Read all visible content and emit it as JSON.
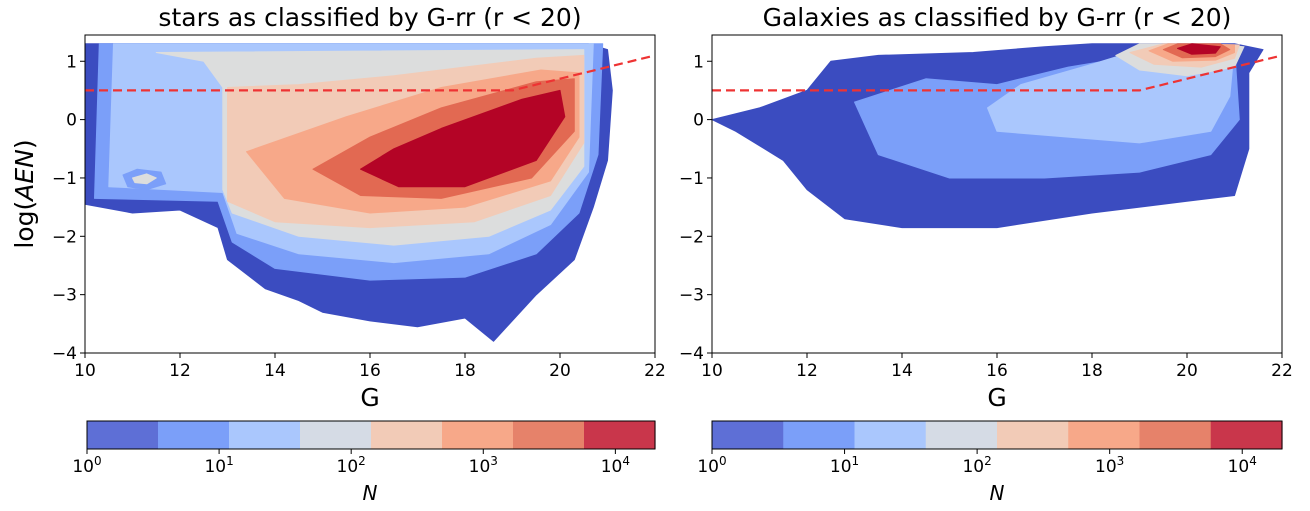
{
  "chart_data": [
    {
      "type": "heatmap",
      "title": "stars as classified by G-rr (r < 20)",
      "xlabel": "G",
      "ylabel": "log(AEN)",
      "xlim": [
        10,
        22
      ],
      "ylim": [
        -4,
        1.45
      ],
      "xticks": [
        "10",
        "12",
        "14",
        "16",
        "18",
        "20",
        "22"
      ],
      "yticks": [
        "−4",
        "−3",
        "−2",
        "−1",
        "0",
        "1"
      ],
      "boundary_line": {
        "x": [
          10,
          19,
          22
        ],
        "y": [
          0.5,
          0.5,
          1.1
        ],
        "color": "#ee3333",
        "style": "dashed"
      },
      "density_levels": [
        {
          "level": 1,
          "color": "#3b4cc0",
          "poly": [
            [
              10,
              -1.45
            ],
            [
              11,
              -1.6
            ],
            [
              12,
              -1.55
            ],
            [
              12.8,
              -1.85
            ],
            [
              13,
              -2.4
            ],
            [
              13.8,
              -2.9
            ],
            [
              14.5,
              -3.1
            ],
            [
              15,
              -3.3
            ],
            [
              16,
              -3.45
            ],
            [
              17,
              -3.55
            ],
            [
              18,
              -3.4
            ],
            [
              18.6,
              -3.8
            ],
            [
              19.5,
              -3.0
            ],
            [
              20.3,
              -2.4
            ],
            [
              20.7,
              -1.5
            ],
            [
              21.0,
              -0.7
            ],
            [
              21.1,
              0.5
            ],
            [
              21.0,
              1.2
            ],
            [
              20.6,
              1.3
            ],
            [
              10,
              1.3
            ]
          ]
        },
        {
          "level": 2,
          "color": "#7b9ff9",
          "poly": [
            [
              10.3,
              1.3
            ],
            [
              10.2,
              -1.35
            ],
            [
              12.8,
              -1.4
            ],
            [
              13.1,
              -2.1
            ],
            [
              14,
              -2.55
            ],
            [
              16,
              -2.75
            ],
            [
              18,
              -2.7
            ],
            [
              19.5,
              -2.3
            ],
            [
              20.4,
              -1.6
            ],
            [
              20.8,
              -0.6
            ],
            [
              20.9,
              1.3
            ]
          ]
        },
        {
          "level": 3,
          "color": "#aac7fd",
          "poly": [
            [
              10.6,
              1.3
            ],
            [
              10.5,
              -1.15
            ],
            [
              12.9,
              -1.25
            ],
            [
              13.2,
              -1.95
            ],
            [
              14.5,
              -2.3
            ],
            [
              16.5,
              -2.45
            ],
            [
              18.5,
              -2.3
            ],
            [
              19.8,
              -1.8
            ],
            [
              20.6,
              -0.9
            ],
            [
              20.7,
              1.3
            ]
          ]
        },
        {
          "level": 4,
          "color": "#dcdddd",
          "poly": [
            [
              11.5,
              1.15
            ],
            [
              12.5,
              1.0
            ],
            [
              12.9,
              0.55
            ],
            [
              12.9,
              -1.2
            ],
            [
              13.1,
              -1.6
            ],
            [
              14.5,
              -2.0
            ],
            [
              16.5,
              -2.15
            ],
            [
              18.5,
              -2.0
            ],
            [
              19.8,
              -1.55
            ],
            [
              20.5,
              -0.8
            ],
            [
              20.5,
              1.2
            ]
          ]
        },
        {
          "level": 5,
          "color": "#f2cbb7",
          "poly": [
            [
              13.0,
              0.55
            ],
            [
              13.0,
              -1.4
            ],
            [
              14.0,
              -1.75
            ],
            [
              16,
              -1.85
            ],
            [
              18.2,
              -1.75
            ],
            [
              19.8,
              -1.3
            ],
            [
              20.5,
              -0.4
            ],
            [
              20.5,
              1.1
            ],
            [
              19.5,
              1.05
            ],
            [
              16.5,
              0.75
            ],
            [
              14.5,
              0.6
            ]
          ]
        },
        {
          "level": 6,
          "color": "#f7a889",
          "poly": [
            [
              13.4,
              -0.55
            ],
            [
              14.2,
              -1.35
            ],
            [
              16,
              -1.6
            ],
            [
              18,
              -1.5
            ],
            [
              19.8,
              -1.05
            ],
            [
              20.4,
              -0.3
            ],
            [
              20.4,
              0.8
            ],
            [
              19.6,
              0.85
            ],
            [
              17.5,
              0.55
            ],
            [
              15.5,
              0.05
            ]
          ]
        },
        {
          "level": 7,
          "color": "#e26952",
          "poly": [
            [
              14.8,
              -0.85
            ],
            [
              15.8,
              -1.3
            ],
            [
              17.5,
              -1.35
            ],
            [
              19.4,
              -1.0
            ],
            [
              20.3,
              -0.2
            ],
            [
              20.3,
              0.7
            ],
            [
              19.5,
              0.65
            ],
            [
              17.5,
              0.2
            ],
            [
              16,
              -0.3
            ]
          ]
        },
        {
          "level": 8,
          "color": "#b40426",
          "poly": [
            [
              15.8,
              -0.85
            ],
            [
              16.6,
              -1.15
            ],
            [
              18,
              -1.15
            ],
            [
              19.5,
              -0.7
            ],
            [
              20.1,
              0.05
            ],
            [
              20.0,
              0.5
            ],
            [
              19.2,
              0.35
            ],
            [
              17.5,
              -0.15
            ],
            [
              16.5,
              -0.5
            ]
          ]
        },
        {
          "level": 2,
          "color": "#7b9ff9",
          "poly": [
            [
              10.8,
              -0.95
            ],
            [
              11.1,
              -0.85
            ],
            [
              11.6,
              -0.9
            ],
            [
              11.7,
              -1.1
            ],
            [
              11.3,
              -1.2
            ],
            [
              10.9,
              -1.15
            ]
          ]
        },
        {
          "level": 4,
          "color": "#dcdddd",
          "poly": [
            [
              11.0,
              -1.0
            ],
            [
              11.3,
              -0.93
            ],
            [
              11.5,
              -1.0
            ],
            [
              11.3,
              -1.1
            ],
            [
              11.05,
              -1.08
            ]
          ]
        }
      ]
    },
    {
      "type": "heatmap",
      "title": "Galaxies as classified by G-rr (r < 20)",
      "xlabel": "G",
      "ylabel": "",
      "xlim": [
        10,
        22
      ],
      "ylim": [
        -4,
        1.45
      ],
      "xticks": [
        "10",
        "12",
        "14",
        "16",
        "18",
        "20",
        "22"
      ],
      "yticks": [
        "−4",
        "−3",
        "−2",
        "−1",
        "0",
        "1"
      ],
      "boundary_line": {
        "x": [
          10,
          19,
          22
        ],
        "y": [
          0.5,
          0.5,
          1.1
        ],
        "color": "#ee3333",
        "style": "dashed"
      },
      "density_levels": [
        {
          "level": 1,
          "color": "#3b4cc0",
          "poly": [
            [
              10.0,
              0.0
            ],
            [
              11.0,
              0.2
            ],
            [
              12.0,
              0.5
            ],
            [
              12.5,
              1.0
            ],
            [
              13.5,
              1.1
            ],
            [
              15.5,
              1.15
            ],
            [
              17,
              1.25
            ],
            [
              18,
              1.3
            ],
            [
              21.0,
              1.3
            ],
            [
              21.6,
              1.2
            ],
            [
              21.3,
              0.8
            ],
            [
              21.3,
              -0.5
            ],
            [
              21.0,
              -1.3
            ],
            [
              20.0,
              -1.4
            ],
            [
              18,
              -1.6
            ],
            [
              16,
              -1.85
            ],
            [
              14,
              -1.85
            ],
            [
              12.8,
              -1.7
            ],
            [
              12.0,
              -1.2
            ],
            [
              11.5,
              -0.7
            ],
            [
              10.5,
              -0.2
            ]
          ]
        },
        {
          "level": 2,
          "color": "#7b9ff9",
          "poly": [
            [
              13.0,
              0.3
            ],
            [
              14.5,
              0.7
            ],
            [
              16,
              0.6
            ],
            [
              17.5,
              0.9
            ],
            [
              19,
              1.1
            ],
            [
              21,
              1.25
            ],
            [
              21.1,
              0.0
            ],
            [
              20.5,
              -0.6
            ],
            [
              19,
              -0.9
            ],
            [
              17,
              -1.0
            ],
            [
              15,
              -1.0
            ],
            [
              13.5,
              -0.6
            ]
          ]
        },
        {
          "level": 3,
          "color": "#aac7fd",
          "poly": [
            [
              15.8,
              0.2
            ],
            [
              16.5,
              0.6
            ],
            [
              18,
              0.95
            ],
            [
              19.2,
              1.25
            ],
            [
              21.0,
              1.25
            ],
            [
              20.9,
              0.4
            ],
            [
              20.5,
              -0.2
            ],
            [
              19,
              -0.4
            ],
            [
              17.5,
              -0.3
            ],
            [
              16,
              -0.2
            ]
          ]
        },
        {
          "level": 4,
          "color": "#dcdddd",
          "poly": [
            [
              18.5,
              1.1
            ],
            [
              19.0,
              0.85
            ],
            [
              20.0,
              0.75
            ],
            [
              21.0,
              0.9
            ],
            [
              21.2,
              1.25
            ],
            [
              20.5,
              1.3
            ],
            [
              19.0,
              1.3
            ]
          ]
        },
        {
          "level": 5,
          "color": "#f2cbb7",
          "poly": [
            [
              18.8,
              1.15
            ],
            [
              19.3,
              0.95
            ],
            [
              20.3,
              0.9
            ],
            [
              21.0,
              1.05
            ],
            [
              21.1,
              1.28
            ],
            [
              19.5,
              1.3
            ]
          ]
        },
        {
          "level": 6,
          "color": "#f7a889",
          "poly": [
            [
              19.2,
              1.18
            ],
            [
              19.7,
              1.0
            ],
            [
              20.6,
              1.02
            ],
            [
              21.0,
              1.15
            ],
            [
              21.0,
              1.28
            ],
            [
              19.6,
              1.3
            ]
          ]
        },
        {
          "level": 7,
          "color": "#e26952",
          "poly": [
            [
              19.5,
              1.2
            ],
            [
              19.9,
              1.06
            ],
            [
              20.6,
              1.08
            ],
            [
              20.9,
              1.2
            ],
            [
              20.7,
              1.3
            ],
            [
              19.8,
              1.3
            ]
          ]
        },
        {
          "level": 8,
          "color": "#b40426",
          "poly": [
            [
              19.8,
              1.22
            ],
            [
              20.1,
              1.12
            ],
            [
              20.6,
              1.14
            ],
            [
              20.7,
              1.25
            ],
            [
              20.1,
              1.3
            ]
          ]
        }
      ]
    }
  ],
  "colorbars": [
    {
      "label": "N",
      "scale": "log",
      "ticks": [
        {
          "base": "10",
          "exp": "0"
        },
        {
          "base": "10",
          "exp": "1"
        },
        {
          "base": "10",
          "exp": "2"
        },
        {
          "base": "10",
          "exp": "3"
        },
        {
          "base": "10",
          "exp": "4"
        }
      ],
      "colors": [
        "#5e6fd6",
        "#7b9ff9",
        "#aac7fd",
        "#d5dbe5",
        "#f2cbb7",
        "#f7a889",
        "#e6826a",
        "#c9364b"
      ]
    },
    {
      "label": "N",
      "scale": "log",
      "ticks": [
        {
          "base": "10",
          "exp": "0"
        },
        {
          "base": "10",
          "exp": "1"
        },
        {
          "base": "10",
          "exp": "2"
        },
        {
          "base": "10",
          "exp": "3"
        },
        {
          "base": "10",
          "exp": "4"
        }
      ],
      "colors": [
        "#5e6fd6",
        "#7b9ff9",
        "#aac7fd",
        "#d5dbe5",
        "#f2cbb7",
        "#f7a889",
        "#e6826a",
        "#c9364b"
      ]
    }
  ],
  "ylabel_parts": {
    "pre": "log(",
    "ital": "AEN",
    "post": ")"
  }
}
